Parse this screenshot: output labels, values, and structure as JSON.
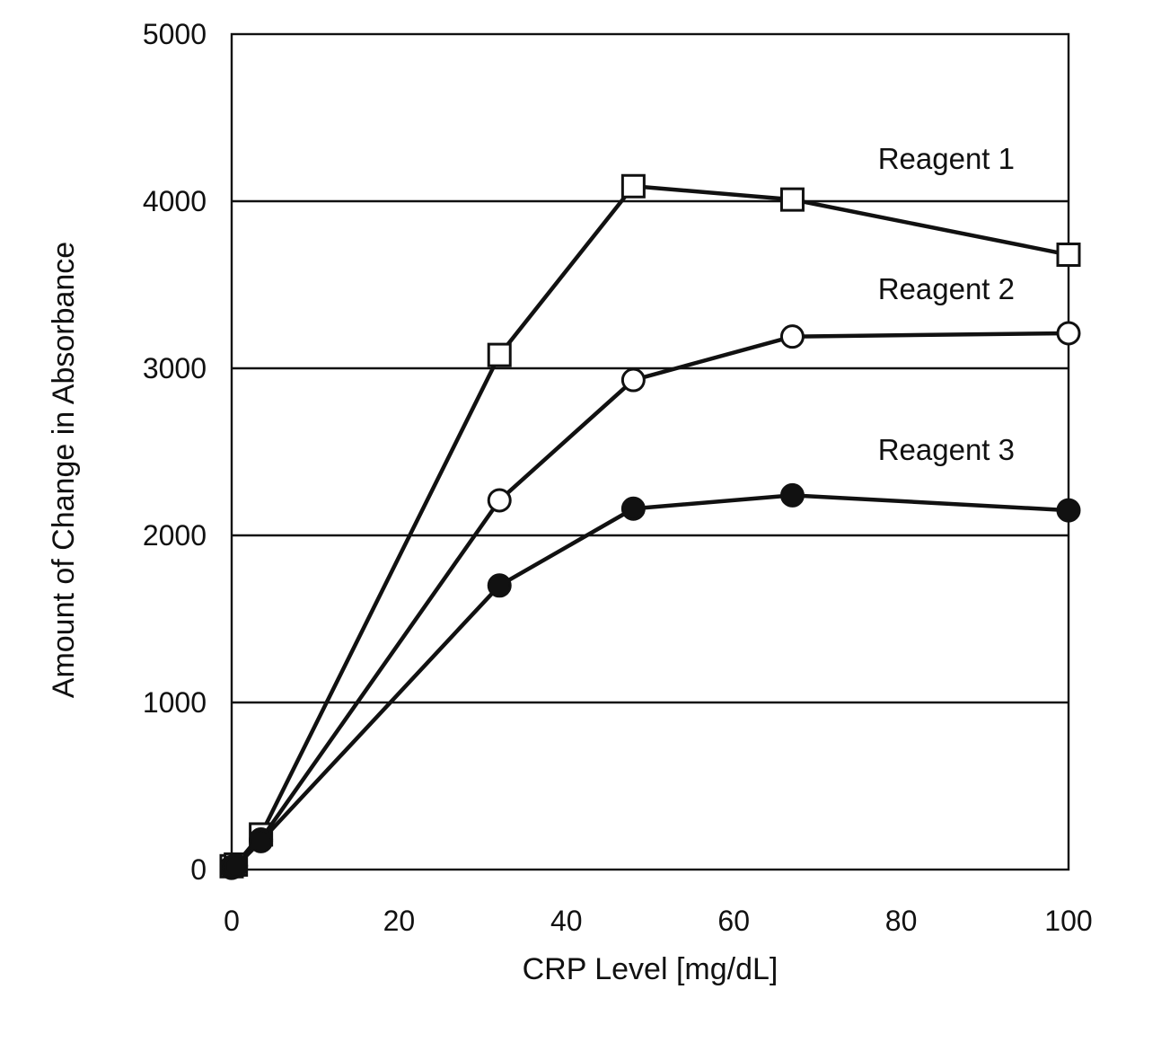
{
  "chart_data": {
    "type": "line",
    "title": "",
    "xlabel": "CRP Level [mg/dL]",
    "ylabel": "Amount of Change in Absorbance",
    "xlim": [
      0,
      100
    ],
    "ylim": [
      0,
      5000
    ],
    "x_ticks": [
      0,
      20,
      40,
      60,
      80,
      100
    ],
    "y_ticks": [
      0,
      1000,
      2000,
      3000,
      4000,
      5000
    ],
    "grid": "horizontal",
    "series": [
      {
        "name": "Reagent 1",
        "marker": "open-square",
        "points": [
          [
            0,
            20
          ],
          [
            0.5,
            30
          ],
          [
            3.5,
            210
          ],
          [
            32,
            3080
          ],
          [
            48,
            4090
          ],
          [
            67,
            4010
          ],
          [
            100,
            3680
          ]
        ]
      },
      {
        "name": "Reagent 2",
        "marker": "open-circle",
        "points": [
          [
            0,
            15
          ],
          [
            0.5,
            25
          ],
          [
            3.5,
            180
          ],
          [
            32,
            2210
          ],
          [
            48,
            2930
          ],
          [
            67,
            3190
          ],
          [
            100,
            3210
          ]
        ]
      },
      {
        "name": "Reagent 3",
        "marker": "filled-circle",
        "points": [
          [
            0,
            10
          ],
          [
            0.5,
            20
          ],
          [
            3.5,
            170
          ],
          [
            32,
            1700
          ],
          [
            48,
            2160
          ],
          [
            67,
            2240
          ],
          [
            100,
            2150
          ]
        ]
      }
    ]
  }
}
